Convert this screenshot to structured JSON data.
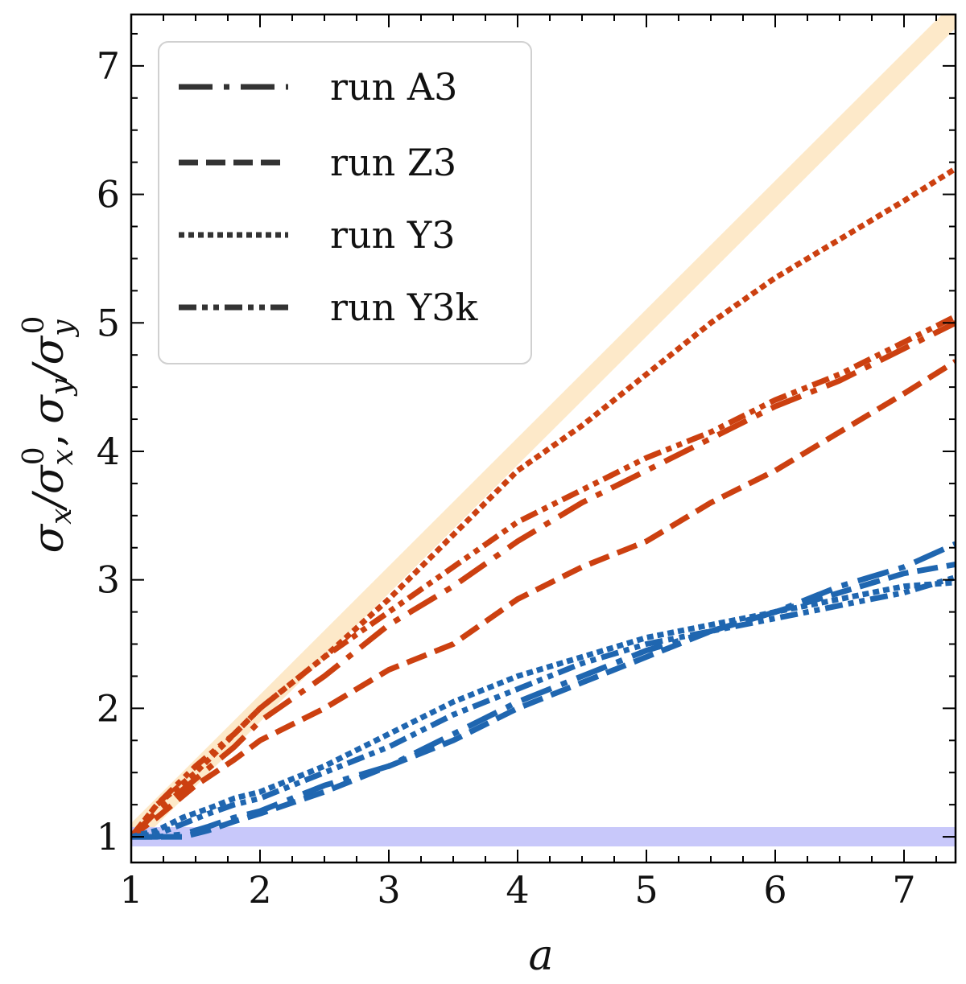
{
  "chart_data": {
    "type": "line",
    "title": "",
    "xlabel": "a",
    "ylabel": "σx/σx0, σy/σy0",
    "ylabel_parts": {
      "sx": "σ",
      "x": "x",
      "sup0a": "0",
      "comma": ",",
      "sy": "σ",
      "y": "y",
      "sup0b": "0",
      "slash": "/"
    },
    "xlim": [
      1,
      7.4
    ],
    "ylim": [
      0.8,
      7.4
    ],
    "xticks": [
      "1",
      "2",
      "3",
      "4",
      "5",
      "6",
      "7"
    ],
    "yticks": [
      "1",
      "2",
      "3",
      "4",
      "5",
      "6",
      "7"
    ],
    "legend_position": "top-left",
    "legend": [
      {
        "name": "run A3",
        "style": "dashdot"
      },
      {
        "name": "run Z3",
        "style": "dashed"
      },
      {
        "name": "run Y3",
        "style": "dotted"
      },
      {
        "name": "run Y3k",
        "style": "dashdotdot"
      }
    ],
    "reference_bands": [
      {
        "name": "linear-reference",
        "color": "#fde9c9",
        "x": [
          1,
          7.4
        ],
        "y": [
          1,
          7.4
        ]
      },
      {
        "name": "constant-reference",
        "color": "#c8c8fa",
        "x": [
          1,
          7.4
        ],
        "y": [
          1,
          1
        ]
      }
    ],
    "colors": {
      "x_component": "#cc4010",
      "y_component": "#1f66b0",
      "legend": "#333333"
    },
    "series": [
      {
        "name": "run A3",
        "component": "sigma_x",
        "style": "dashdot",
        "x": [
          1,
          1.2,
          1.5,
          1.8,
          2,
          2.5,
          3,
          3.5,
          4,
          4.5,
          5,
          5.5,
          6,
          6.5,
          7,
          7.4
        ],
        "y": [
          1,
          1.2,
          1.45,
          1.7,
          1.9,
          2.25,
          2.65,
          2.95,
          3.3,
          3.6,
          3.85,
          4.1,
          4.35,
          4.55,
          4.8,
          5.0
        ]
      },
      {
        "name": "run Z3",
        "component": "sigma_x",
        "style": "dashed",
        "x": [
          1,
          1.2,
          1.5,
          1.8,
          2,
          2.5,
          3,
          3.5,
          4,
          4.5,
          5,
          5.5,
          6,
          6.5,
          7,
          7.4
        ],
        "y": [
          1,
          1.15,
          1.4,
          1.6,
          1.75,
          2.0,
          2.3,
          2.5,
          2.85,
          3.1,
          3.3,
          3.6,
          3.85,
          4.15,
          4.45,
          4.7
        ]
      },
      {
        "name": "run Y3",
        "component": "sigma_x",
        "style": "dotted",
        "x": [
          1,
          1.2,
          1.5,
          1.8,
          2,
          2.5,
          3,
          3.5,
          4,
          4.5,
          5,
          5.5,
          6,
          6.5,
          7,
          7.4
        ],
        "y": [
          1,
          1.25,
          1.5,
          1.8,
          2.0,
          2.4,
          2.85,
          3.35,
          3.85,
          4.2,
          4.6,
          5.0,
          5.35,
          5.65,
          5.95,
          6.2
        ]
      },
      {
        "name": "run Y3k",
        "component": "sigma_x",
        "style": "dashdotdot",
        "x": [
          1,
          1.2,
          1.5,
          1.8,
          2,
          2.5,
          3,
          3.5,
          4,
          4.5,
          5,
          5.5,
          6,
          6.5,
          7,
          7.4
        ],
        "y": [
          1,
          1.25,
          1.55,
          1.8,
          2.0,
          2.4,
          2.75,
          3.1,
          3.45,
          3.7,
          3.95,
          4.15,
          4.4,
          4.6,
          4.85,
          5.05
        ]
      },
      {
        "name": "run A3",
        "component": "sigma_y",
        "style": "dashdot",
        "x": [
          1,
          1.2,
          1.4,
          1.6,
          1.8,
          2,
          2.5,
          3,
          3.5,
          4,
          4.5,
          5,
          5.5,
          6,
          6.5,
          7,
          7.4
        ],
        "y": [
          1,
          1.0,
          1.02,
          1.08,
          1.15,
          1.2,
          1.4,
          1.55,
          1.8,
          2.05,
          2.25,
          2.45,
          2.6,
          2.75,
          2.95,
          3.1,
          3.28
        ]
      },
      {
        "name": "run Z3",
        "component": "sigma_y",
        "style": "dashed",
        "x": [
          1,
          1.2,
          1.4,
          1.6,
          1.8,
          2,
          2.5,
          3,
          3.5,
          4,
          4.5,
          5,
          5.5,
          6,
          6.5,
          7,
          7.4
        ],
        "y": [
          1,
          1.0,
          1.0,
          1.05,
          1.12,
          1.18,
          1.35,
          1.55,
          1.75,
          2.0,
          2.2,
          2.4,
          2.6,
          2.75,
          2.9,
          3.05,
          3.12
        ]
      },
      {
        "name": "run Y3",
        "component": "sigma_y",
        "style": "dotted",
        "x": [
          1,
          1.2,
          1.4,
          1.6,
          1.8,
          2,
          2.5,
          3,
          3.5,
          4,
          4.5,
          5,
          5.5,
          6,
          6.5,
          7,
          7.4
        ],
        "y": [
          1,
          1.05,
          1.15,
          1.22,
          1.3,
          1.35,
          1.55,
          1.8,
          2.05,
          2.25,
          2.4,
          2.55,
          2.65,
          2.75,
          2.85,
          2.95,
          2.98
        ]
      },
      {
        "name": "run Y3k",
        "component": "sigma_y",
        "style": "dashdotdot",
        "x": [
          1,
          1.2,
          1.4,
          1.6,
          1.8,
          2,
          2.5,
          3,
          3.5,
          4,
          4.5,
          5,
          5.5,
          6,
          6.5,
          7,
          7.4
        ],
        "y": [
          1,
          1.02,
          1.1,
          1.18,
          1.25,
          1.3,
          1.5,
          1.7,
          1.95,
          2.15,
          2.35,
          2.5,
          2.6,
          2.7,
          2.8,
          2.9,
          3.02
        ]
      }
    ]
  }
}
